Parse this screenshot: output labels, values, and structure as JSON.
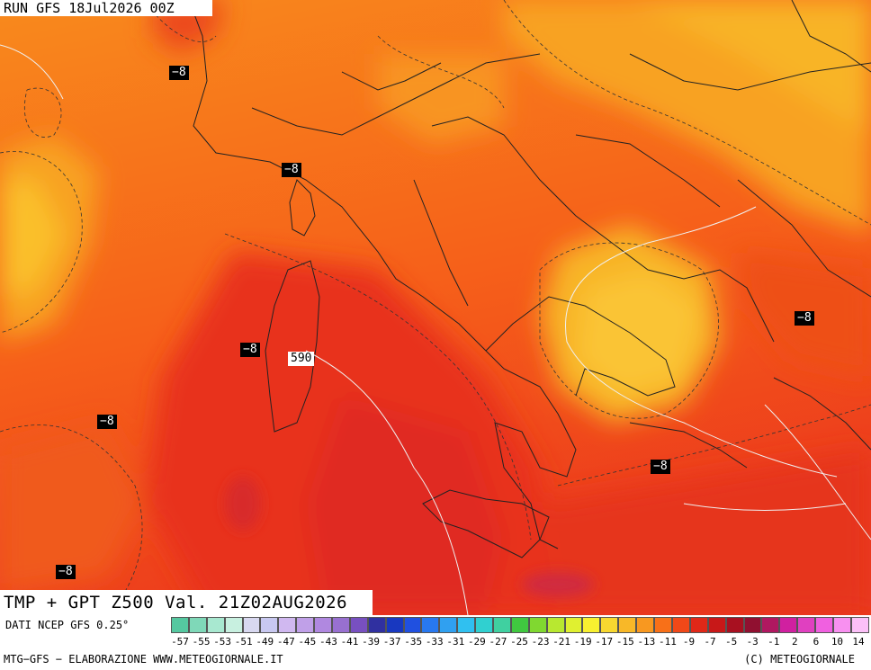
{
  "header": {
    "run_title": "RUN GFS 18Jul2026 00Z"
  },
  "map": {
    "field_title": "TMP + GPT Z500 Val. 21Z02AUG2026",
    "labels": [
      {
        "text": "−8",
        "style": "dark"
      },
      {
        "text": "−8",
        "style": "dark"
      },
      {
        "text": "−8",
        "style": "dark"
      },
      {
        "text": "590",
        "style": "light"
      },
      {
        "text": "−8",
        "style": "dark"
      },
      {
        "text": "−8",
        "style": "dark"
      },
      {
        "text": "−8",
        "style": "dark"
      },
      {
        "text": "−8",
        "style": "dark"
      }
    ]
  },
  "legend": {
    "source": "DATI NCEP GFS 0.25°",
    "ticks": [
      "-57",
      "-55",
      "-53",
      "-51",
      "-49",
      "-47",
      "-45",
      "-43",
      "-41",
      "-39",
      "-37",
      "-35",
      "-33",
      "-31",
      "-29",
      "-27",
      "-25",
      "-23",
      "-21",
      "-19",
      "-17",
      "-15",
      "-13",
      "-11",
      "-9",
      "-7",
      "-5",
      "-3",
      "-1",
      "2",
      "6",
      "10",
      "14"
    ],
    "colors": [
      "#55c8a0",
      "#7fd8b8",
      "#a8e8d0",
      "#c8f0e0",
      "#d8d8f0",
      "#c8c8f0",
      "#d0b8f0",
      "#c0a0e8",
      "#b088e0",
      "#9870d0",
      "#7850c0",
      "#3030a0",
      "#1838c0",
      "#2050e0",
      "#2878f0",
      "#30a0f0",
      "#30c0f0",
      "#30d0d0",
      "#40d0a0",
      "#40c840",
      "#80d830",
      "#b8e830",
      "#e0f030",
      "#f8f030",
      "#f8d830",
      "#f8b828",
      "#f89820",
      "#f87018",
      "#f04818",
      "#e02818",
      "#c81818",
      "#a81020",
      "#901030",
      "#b01860",
      "#d020a0",
      "#e040c0",
      "#f060e0",
      "#f890f0",
      "#fcc0f8"
    ]
  },
  "footer": {
    "left": "MTG−GFS − ELABORAZIONE WWW.METEOGIORNALE.IT",
    "right": "(C) METEOGIORNALE"
  }
}
